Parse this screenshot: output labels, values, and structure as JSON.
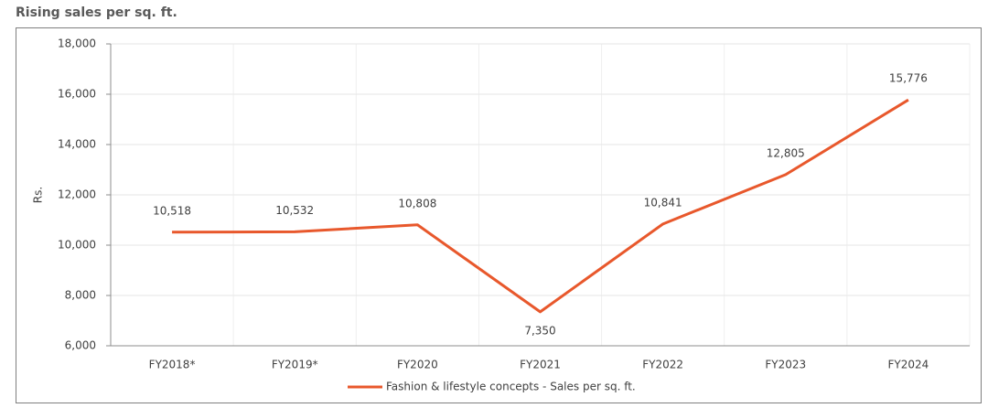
{
  "chart_data": {
    "type": "line",
    "title": "Rising sales per sq. ft.",
    "y_label": "Rs.",
    "categories": [
      "FY2018*",
      "FY2019*",
      "FY2020",
      "FY2021",
      "FY2022",
      "FY2023",
      "FY2024"
    ],
    "series": [
      {
        "name": "Fashion & lifestyle concepts - Sales per sq. ft.",
        "color": "#e8582c",
        "values": [
          10518,
          10532,
          10808,
          7350,
          10841,
          12805,
          15776
        ],
        "value_labels": [
          "10,518",
          "10,532",
          "10,808",
          "7,350",
          "10,841",
          "12,805",
          "15,776"
        ]
      }
    ],
    "ylim": [
      6000,
      18000
    ],
    "yticks": [
      {
        "value": 6000,
        "label": "6,000"
      },
      {
        "value": 8000,
        "label": "8,000"
      },
      {
        "value": 10000,
        "label": "10,000"
      },
      {
        "value": 12000,
        "label": "12,000"
      },
      {
        "value": 14000,
        "label": "14,000"
      },
      {
        "value": 16000,
        "label": "16,000"
      },
      {
        "value": 18000,
        "label": "18,000"
      }
    ],
    "grid": true,
    "legend": "bottom"
  }
}
